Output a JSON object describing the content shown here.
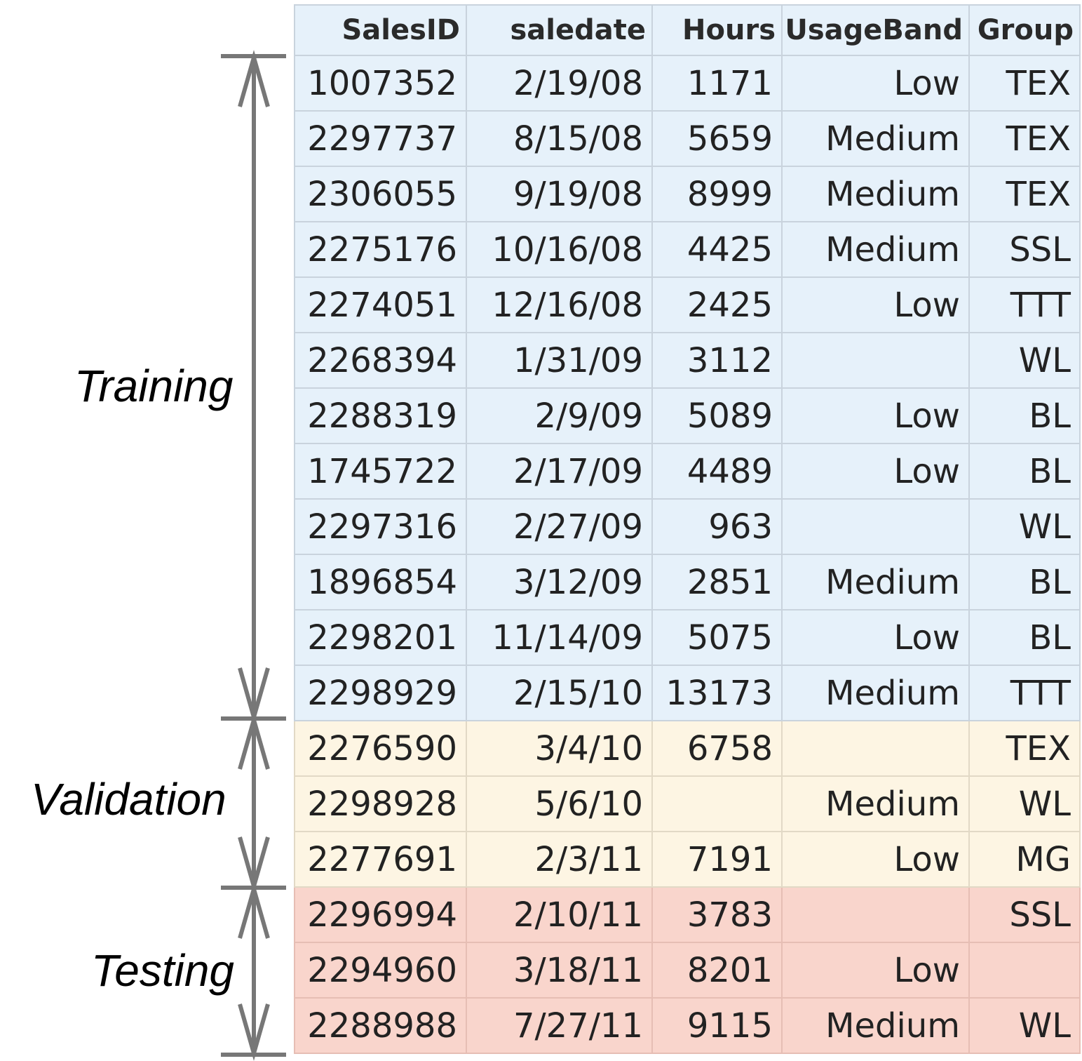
{
  "segments": {
    "training": "Training",
    "validation": "Validation",
    "testing": "Testing"
  },
  "table": {
    "headers": [
      "SalesID",
      "saledate",
      "Hours",
      "UsageBand",
      "Group"
    ],
    "rows": [
      {
        "split": "training",
        "cells": [
          "1007352",
          "2/19/08",
          "1171",
          "Low",
          "TEX"
        ]
      },
      {
        "split": "training",
        "cells": [
          "2297737",
          "8/15/08",
          "5659",
          "Medium",
          "TEX"
        ]
      },
      {
        "split": "training",
        "cells": [
          "2306055",
          "9/19/08",
          "8999",
          "Medium",
          "TEX"
        ]
      },
      {
        "split": "training",
        "cells": [
          "2275176",
          "10/16/08",
          "4425",
          "Medium",
          "SSL"
        ]
      },
      {
        "split": "training",
        "cells": [
          "2274051",
          "12/16/08",
          "2425",
          "Low",
          "TTT"
        ]
      },
      {
        "split": "training",
        "cells": [
          "2268394",
          "1/31/09",
          "3112",
          "",
          "WL"
        ]
      },
      {
        "split": "training",
        "cells": [
          "2288319",
          "2/9/09",
          "5089",
          "Low",
          "BL"
        ]
      },
      {
        "split": "training",
        "cells": [
          "1745722",
          "2/17/09",
          "4489",
          "Low",
          "BL"
        ]
      },
      {
        "split": "training",
        "cells": [
          "2297316",
          "2/27/09",
          "963",
          "",
          "WL"
        ]
      },
      {
        "split": "training",
        "cells": [
          "1896854",
          "3/12/09",
          "2851",
          "Medium",
          "BL"
        ]
      },
      {
        "split": "training",
        "cells": [
          "2298201",
          "11/14/09",
          "5075",
          "Low",
          "BL"
        ]
      },
      {
        "split": "training",
        "cells": [
          "2298929",
          "2/15/10",
          "13173",
          "Medium",
          "TTT"
        ]
      },
      {
        "split": "validation",
        "cells": [
          "2276590",
          "3/4/10",
          "6758",
          "",
          "TEX"
        ]
      },
      {
        "split": "validation",
        "cells": [
          "2298928",
          "5/6/10",
          "",
          "Medium",
          "WL"
        ]
      },
      {
        "split": "validation",
        "cells": [
          "2277691",
          "2/3/11",
          "7191",
          "Low",
          "MG"
        ]
      },
      {
        "split": "testing",
        "cells": [
          "2296994",
          "2/10/11",
          "3783",
          "",
          "SSL"
        ]
      },
      {
        "split": "testing",
        "cells": [
          "2294960",
          "3/18/11",
          "8201",
          "Low",
          ""
        ]
      },
      {
        "split": "testing",
        "cells": [
          "2288988",
          "7/27/11",
          "9115",
          "Medium",
          "WL"
        ]
      }
    ]
  },
  "colors": {
    "training_fill": "#e6f1fa",
    "validation_fill": "#fdf5e3",
    "testing_fill": "#f9d5cc",
    "bracket": "#777777"
  }
}
